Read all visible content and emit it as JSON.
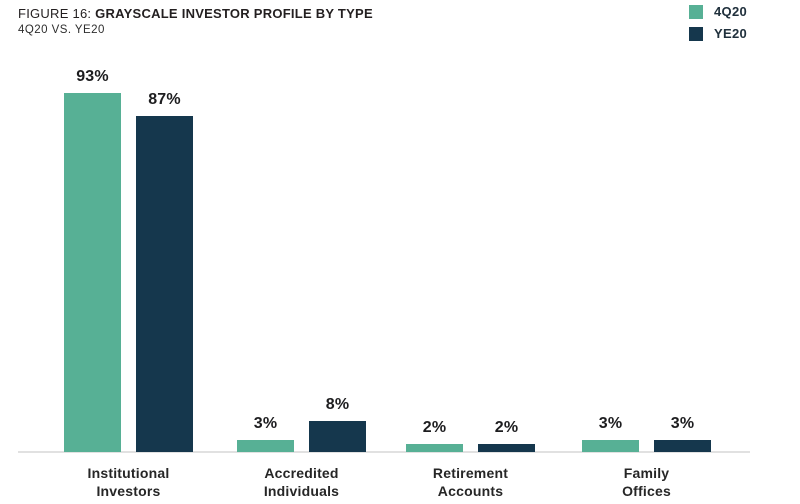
{
  "figure": {
    "prefix": "FIGURE 16: ",
    "title": "GRAYSCALE INVESTOR PROFILE BY TYPE",
    "subtitle": "4Q20 VS. YE20"
  },
  "colors": {
    "series_4q20": "#57B095",
    "series_ye20": "#15374D",
    "axis_line": "#e1e1e1",
    "text": "#231f20",
    "background": "#ffffff"
  },
  "chart_data": {
    "type": "bar",
    "title": "FIGURE 16: GRAYSCALE INVESTOR PROFILE BY TYPE",
    "subtitle": "4Q20 VS. YE20",
    "categories": [
      "Institutional\nInvestors",
      "Accredited\nIndividuals",
      "Retirement\nAccounts",
      "Family\nOffices"
    ],
    "series": [
      {
        "name": "4Q20",
        "color": "#57B095",
        "values": [
          93,
          3,
          2,
          3
        ]
      },
      {
        "name": "YE20",
        "color": "#15374D",
        "values": [
          87,
          8,
          2,
          3
        ]
      }
    ],
    "value_labels": [
      [
        "93%",
        "3%",
        "2%",
        "3%"
      ],
      [
        "87%",
        "8%",
        "2%",
        "3%"
      ]
    ],
    "unit": "%",
    "ylim": [
      0,
      100
    ],
    "grid": false,
    "y_axis_shown": false,
    "legend_position": "top-right"
  }
}
